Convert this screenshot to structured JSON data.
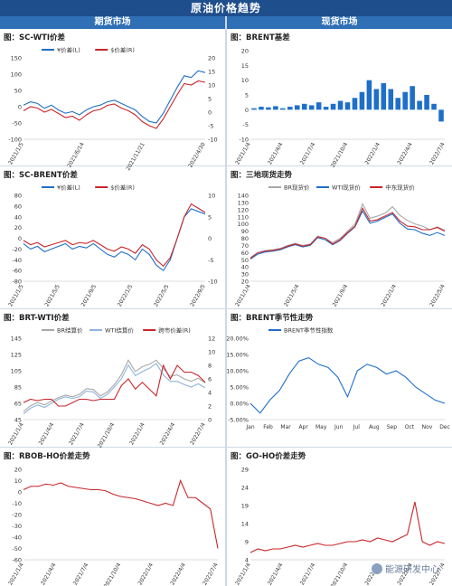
{
  "page": {
    "title": "原油价格趋势",
    "left_header": "期货市场",
    "right_header": "现货市场",
    "watermark": "能源研发中心"
  },
  "chart_data": [
    {
      "id": "sc_wti",
      "panel_title": "图：SC-WTI价差",
      "type": "line",
      "legend": [
        "¥价差(L)",
        "$价差(R)"
      ],
      "colors": [
        "#1f6fc9",
        "#c8262b"
      ],
      "x_ticks": [
        "2021/1/5",
        "2021/6/14",
        "2021/11/21",
        "2022/4/30"
      ],
      "yl": [
        -100,
        150
      ],
      "yl_ticks": [
        -100,
        -50,
        0,
        50,
        100,
        150
      ],
      "yr": [
        -10,
        20
      ],
      "yr_ticks": [
        -10,
        -5,
        0,
        5,
        10,
        15,
        20
      ],
      "series": [
        {
          "name": "¥价差(L)",
          "axis": "L",
          "values": [
            5,
            15,
            10,
            -5,
            5,
            -10,
            -20,
            -15,
            -25,
            -10,
            0,
            5,
            15,
            20,
            10,
            0,
            -10,
            -30,
            -45,
            -50,
            -20,
            20,
            60,
            95,
            90,
            110,
            105
          ]
        },
        {
          "name": "$价差(R)",
          "axis": "R",
          "values": [
            0.5,
            2,
            1.5,
            0,
            1,
            -0.5,
            -2,
            -1.5,
            -3,
            -1,
            0.5,
            1,
            2.5,
            3,
            1.5,
            0.5,
            -1,
            -3.5,
            -5,
            -6,
            -2.5,
            2,
            6.5,
            10.5,
            10,
            11.5,
            11
          ]
        }
      ]
    },
    {
      "id": "sc_brent",
      "panel_title": "图：SC-BRENT价差",
      "type": "line",
      "legend": [
        "¥价差(L)",
        "$价差(R)"
      ],
      "colors": [
        "#1f6fc9",
        "#c8262b"
      ],
      "x_ticks": [
        "2021/1/5",
        "2021/5/5",
        "2021/9/5",
        "2022/1/5",
        "2022/5/5",
        "2022/9/5"
      ],
      "yl": [
        -80,
        80
      ],
      "yl_ticks": [
        -80,
        -60,
        -40,
        -20,
        0,
        20,
        40,
        60,
        80
      ],
      "yr": [
        -10,
        10
      ],
      "yr_ticks": [
        -10,
        -5,
        0,
        5,
        10
      ],
      "series": [
        {
          "name": "¥价差(L)",
          "axis": "L",
          "values": [
            -10,
            -20,
            -15,
            -25,
            -20,
            -15,
            -10,
            -20,
            -15,
            -18,
            -10,
            -20,
            -30,
            -35,
            -25,
            -30,
            -40,
            -20,
            -30,
            -50,
            -60,
            -40,
            0,
            40,
            55,
            50,
            45
          ]
        },
        {
          "name": "$价差(R)",
          "axis": "R",
          "values": [
            -0.5,
            -1.5,
            -1,
            -2,
            -1.5,
            -1,
            -0.5,
            -1.5,
            -1,
            -1.2,
            -0.5,
            -1.5,
            -2.5,
            -3,
            -2,
            -2.5,
            -3.5,
            -1.5,
            -2.5,
            -5,
            -6.5,
            -4.5,
            0,
            5,
            8,
            7,
            6
          ]
        }
      ]
    },
    {
      "id": "brt_wti",
      "panel_title": "图：BRT-WTI价差",
      "type": "line",
      "legend": [
        "BR结算价",
        "WTI结算价",
        "跨市价差(R)"
      ],
      "colors": [
        "#a8a8a8",
        "#8fb4dd",
        "#c8262b"
      ],
      "x_ticks": [
        "2021/1/4",
        "2021/4/4",
        "2021/7/4",
        "2021/10/4",
        "2022/1/4",
        "2022/4/4",
        "2022/7/4"
      ],
      "yl": [
        45,
        145
      ],
      "yl_ticks": [
        45,
        65,
        85,
        105,
        125,
        145
      ],
      "yr": [
        0,
        12
      ],
      "yr_ticks": [
        0,
        2,
        4,
        6,
        8,
        10,
        12
      ],
      "series": [
        {
          "name": "BR结算价",
          "axis": "L",
          "values": [
            55,
            62,
            66,
            63,
            68,
            72,
            75,
            73,
            76,
            83,
            82,
            74,
            79,
            88,
            100,
            118,
            104,
            110,
            113,
            118,
            108,
            98,
            100,
            95,
            92,
            96,
            90
          ]
        },
        {
          "name": "WTI结算价",
          "axis": "L",
          "values": [
            52,
            59,
            63,
            60,
            65,
            70,
            73,
            71,
            73,
            80,
            79,
            71,
            76,
            85,
            95,
            112,
            99,
            104,
            108,
            114,
            100,
            92,
            92,
            88,
            85,
            89,
            84
          ]
        },
        {
          "name": "跨市价差(R)",
          "axis": "R",
          "values": [
            2.5,
            3,
            2.8,
            3,
            3,
            2,
            2,
            2.5,
            3,
            3,
            2.8,
            3,
            3,
            3,
            5,
            6,
            4.5,
            5.5,
            4.5,
            3.5,
            8,
            6,
            8,
            7,
            7,
            6.5,
            5.5
          ]
        }
      ]
    },
    {
      "id": "rbob_ho",
      "panel_title": "图：RBOB-HO价差走势",
      "type": "line",
      "colors": [
        "#c8262b"
      ],
      "x_ticks": [
        "2021/1/4",
        "2021/4/4",
        "2021/7/4",
        "2021/10/4",
        "2022/1/4",
        "2022/4/4",
        "2022/7/4"
      ],
      "yl": [
        -60,
        20
      ],
      "yl_ticks": [
        -60,
        -50,
        -40,
        -30,
        -20,
        -10,
        0,
        10,
        20
      ],
      "series": [
        {
          "name": "RBOB-HO",
          "axis": "L",
          "values": [
            2,
            5,
            5,
            7,
            6,
            8,
            5,
            4,
            3,
            2,
            2,
            1,
            -2,
            -4,
            -5,
            -6,
            -8,
            -10,
            -12,
            -10,
            -12,
            10,
            -5,
            -5,
            -10,
            -15,
            -50
          ]
        }
      ]
    },
    {
      "id": "brent_basis",
      "panel_title": "图：BRENT基差",
      "type": "bar",
      "colors": [
        "#1f6fc9"
      ],
      "x_ticks": [
        "2021/1/4",
        "2021/4/4",
        "2021/7/4",
        "2021/10/4",
        "2022/1/4",
        "2022/4/4",
        "2022/7/4"
      ],
      "yl": [
        -10,
        20
      ],
      "yl_ticks": [
        -10,
        -5,
        0,
        5,
        10,
        15,
        20
      ],
      "series": [
        {
          "name": "BRENT基差",
          "axis": "L",
          "values": [
            0.5,
            1,
            0.8,
            1.2,
            0.5,
            1,
            1.5,
            2,
            1.5,
            2.5,
            1,
            2,
            3,
            2.5,
            4,
            6,
            10,
            7,
            9,
            7,
            4,
            6,
            8,
            3,
            5,
            2,
            -4
          ]
        }
      ]
    },
    {
      "id": "three_spot",
      "panel_title": "图：三地现货走势",
      "type": "line",
      "legend": [
        "BR现货价",
        "WTI现货价",
        "中东现货价"
      ],
      "colors": [
        "#a8a8a8",
        "#1f6fc9",
        "#c8262b"
      ],
      "x_ticks": [
        "2021/1/4",
        "2021/5/4",
        "2021/9/4",
        "2022/1/4",
        "2022/5/4"
      ],
      "yl": [
        20,
        140
      ],
      "yl_ticks": [
        20,
        30,
        40,
        50,
        60,
        70,
        80,
        90,
        100,
        110,
        120,
        130,
        140
      ],
      "series": [
        {
          "name": "BR现货价",
          "axis": "L",
          "values": [
            53,
            60,
            63,
            64,
            66,
            70,
            73,
            70,
            72,
            83,
            80,
            74,
            80,
            90,
            100,
            128,
            108,
            111,
            115,
            124,
            112,
            105,
            100,
            97,
            92,
            96,
            91
          ]
        },
        {
          "name": "WTI现货价",
          "axis": "L",
          "values": [
            51,
            58,
            61,
            62,
            64,
            68,
            71,
            68,
            70,
            81,
            78,
            71,
            77,
            87,
            96,
            118,
            101,
            104,
            109,
            114,
            101,
            93,
            92,
            87,
            84,
            88,
            84
          ]
        },
        {
          "name": "中东现货价",
          "axis": "L",
          "values": [
            52,
            60,
            62,
            63,
            65,
            69,
            72,
            69,
            71,
            82,
            80,
            72,
            78,
            88,
            97,
            122,
            104,
            106,
            111,
            116,
            104,
            97,
            96,
            92,
            92,
            95,
            90
          ]
        }
      ]
    },
    {
      "id": "brent_seasonal",
      "panel_title": "图：BRENT季节性走势",
      "type": "line",
      "legend": [
        "BRENT季节性指数"
      ],
      "colors": [
        "#1f6fc9"
      ],
      "x_ticks": [
        "Jan",
        "Feb",
        "Mar",
        "Apr",
        "May",
        "Jun",
        "Jul",
        "Aug",
        "Sep",
        "Oct",
        "Nov",
        "Dec"
      ],
      "yl": [
        -0.05,
        0.2
      ],
      "yl_ticks": [
        "-5.00%",
        "0.00%",
        "5.00%",
        "10.00%",
        "15.00%",
        "20.00%"
      ],
      "series": [
        {
          "name": "BRENT季节性指数",
          "axis": "L",
          "values": [
            0,
            -0.03,
            0.01,
            0.04,
            0.09,
            0.13,
            0.14,
            0.12,
            0.11,
            0.08,
            0.02,
            0.1,
            0.12,
            0.11,
            0.09,
            0.1,
            0.08,
            0.05,
            0.03,
            0.01,
            0
          ]
        }
      ]
    },
    {
      "id": "go_ho",
      "panel_title": "图：GO-HO价差走势",
      "type": "line",
      "colors": [
        "#c8262b"
      ],
      "x_ticks": [
        "2021/1/4",
        "2021/4/4",
        "2021/7/4",
        "2021/10/4",
        "2022/1/4",
        "2022/4/4",
        "2022/7/4"
      ],
      "yl": [
        4,
        29
      ],
      "yl_ticks": [
        4,
        9,
        14,
        19,
        24,
        29
      ],
      "series": [
        {
          "name": "GO-HO",
          "axis": "L",
          "values": [
            6,
            7,
            6.5,
            7,
            7,
            7.5,
            8,
            7.5,
            8,
            8.5,
            8,
            8,
            8.5,
            9,
            9,
            9.5,
            9,
            10,
            9.5,
            9,
            10,
            11,
            20,
            9,
            8,
            9,
            8.5
          ]
        }
      ]
    }
  ]
}
